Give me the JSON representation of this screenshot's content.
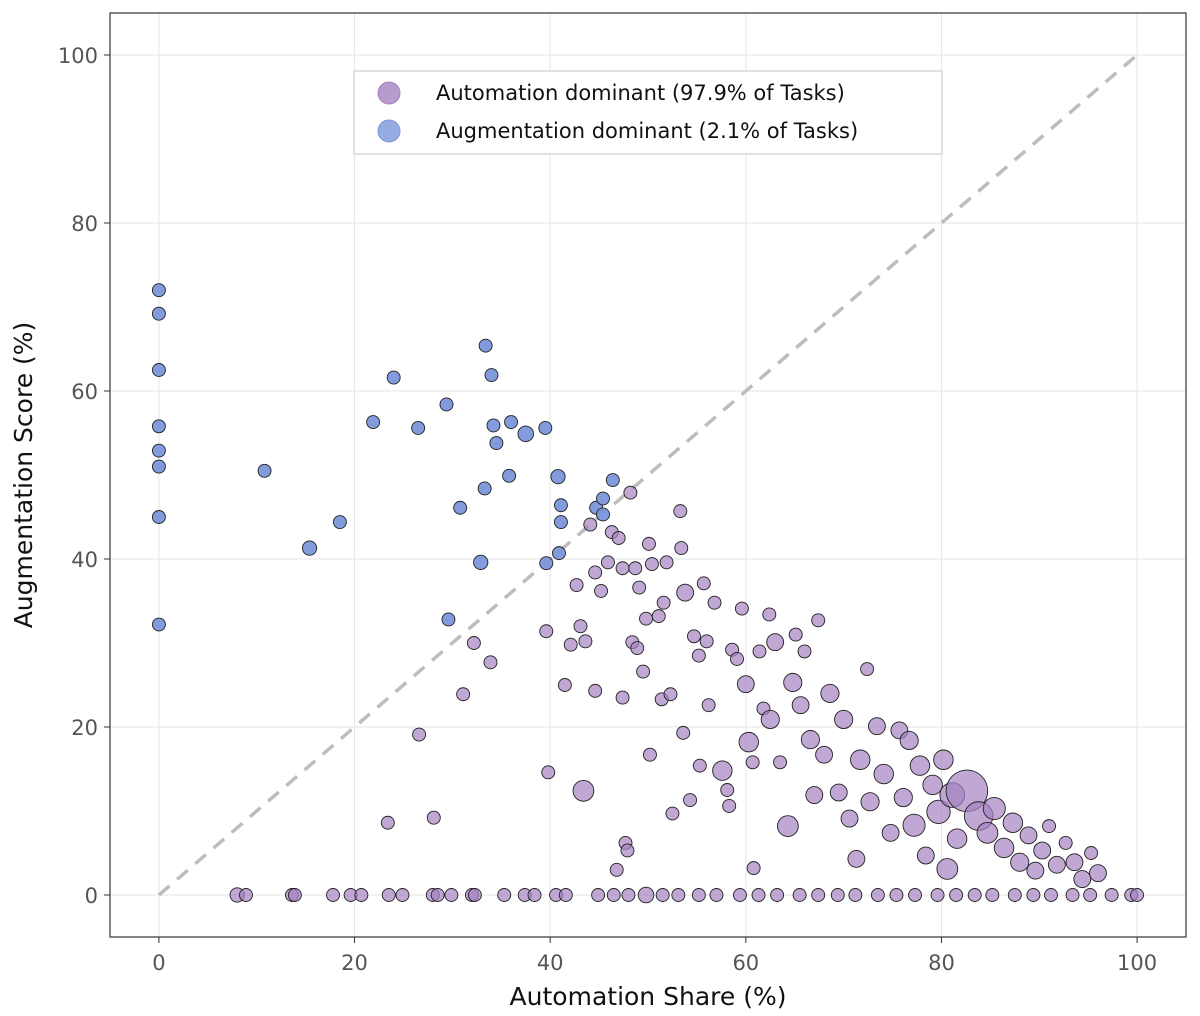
{
  "chart_data": {
    "type": "scatter",
    "xlabel": "Automation Share (%)",
    "ylabel": "Augmentation Score (%)",
    "xlim": [
      -5,
      105
    ],
    "ylim": [
      -5,
      105
    ],
    "x_ticks": [
      0,
      20,
      40,
      60,
      80,
      100
    ],
    "y_ticks": [
      0,
      20,
      40,
      60,
      80,
      100
    ],
    "x_tick_labels": [
      "0",
      "20",
      "40",
      "60",
      "80",
      "100"
    ],
    "y_tick_labels": [
      "0",
      "20",
      "40",
      "60",
      "80",
      "100"
    ],
    "grid": true,
    "reference_line": {
      "style": "dashed",
      "color": "#bdbdbd",
      "from": [
        0,
        0
      ],
      "to": [
        100,
        100
      ]
    },
    "legend": {
      "position": "top-center",
      "entries": [
        {
          "label": "Automation dominant (97.9% of Tasks)",
          "color": "#a582c2"
        },
        {
          "label": "Augmentation dominant (2.1% of Tasks)",
          "color": "#7b96da"
        }
      ]
    },
    "series": [
      {
        "name": "Augmentation dominant",
        "color": "#7b96da",
        "points": [
          [
            0,
            72,
            1
          ],
          [
            0,
            69.2,
            1
          ],
          [
            0,
            62.5,
            1
          ],
          [
            0,
            55.8,
            1
          ],
          [
            0,
            52.9,
            1
          ],
          [
            0,
            51,
            1
          ],
          [
            0,
            45,
            1
          ],
          [
            0,
            32.2,
            1
          ],
          [
            10.8,
            50.5,
            1
          ],
          [
            15.4,
            41.3,
            1.1
          ],
          [
            18.5,
            44.4,
            1
          ],
          [
            21.9,
            56.3,
            1
          ],
          [
            24,
            61.6,
            1
          ],
          [
            26.5,
            55.6,
            1
          ],
          [
            29.4,
            58.4,
            1
          ],
          [
            29.6,
            32.8,
            1
          ],
          [
            30.8,
            46.1,
            1
          ],
          [
            32.9,
            39.6,
            1.1
          ],
          [
            33.3,
            48.4,
            1
          ],
          [
            33.4,
            65.4,
            1
          ],
          [
            34,
            61.9,
            1
          ],
          [
            34.2,
            55.9,
            1
          ],
          [
            34.5,
            53.8,
            1
          ],
          [
            35.8,
            49.9,
            1
          ],
          [
            36,
            56.3,
            1
          ],
          [
            37.5,
            54.9,
            1.2
          ],
          [
            39.5,
            55.6,
            1
          ],
          [
            39.6,
            39.5,
            1
          ],
          [
            40.8,
            49.8,
            1.1
          ],
          [
            41.1,
            46.4,
            1
          ],
          [
            41.1,
            44.4,
            1
          ],
          [
            40.9,
            40.7,
            1
          ],
          [
            44.7,
            46.1,
            1
          ],
          [
            45.4,
            47.2,
            1
          ],
          [
            45.4,
            45.3,
            1
          ],
          [
            46.4,
            49.4,
            1
          ]
        ]
      },
      {
        "name": "Automation dominant",
        "color": "#a582c2",
        "points": [
          [
            8,
            0,
            1.1
          ],
          [
            8.9,
            0,
            1
          ],
          [
            13.6,
            0,
            1
          ],
          [
            13.9,
            0,
            1
          ],
          [
            17.8,
            0,
            1
          ],
          [
            19.6,
            0,
            1
          ],
          [
            20.7,
            0,
            1
          ],
          [
            23.5,
            0,
            1
          ],
          [
            24.9,
            0,
            1
          ],
          [
            28,
            0,
            1
          ],
          [
            28.5,
            0,
            1
          ],
          [
            29.9,
            0,
            1
          ],
          [
            32,
            0,
            1
          ],
          [
            32.3,
            0,
            1
          ],
          [
            35.3,
            0,
            1
          ],
          [
            37.4,
            0,
            1
          ],
          [
            38.4,
            0,
            1
          ],
          [
            40.6,
            0,
            1
          ],
          [
            41.6,
            0,
            1
          ],
          [
            44.9,
            0,
            1
          ],
          [
            46.5,
            0,
            1
          ],
          [
            48,
            0,
            1
          ],
          [
            49.8,
            0,
            1.2
          ],
          [
            51.5,
            0,
            1
          ],
          [
            53.1,
            0,
            1
          ],
          [
            55.2,
            0,
            1
          ],
          [
            57,
            0,
            1
          ],
          [
            59.4,
            0,
            1
          ],
          [
            61.3,
            0,
            1
          ],
          [
            63.2,
            0,
            1
          ],
          [
            65.5,
            0,
            1
          ],
          [
            67.4,
            0,
            1
          ],
          [
            69.4,
            0,
            1
          ],
          [
            71.2,
            0,
            1
          ],
          [
            73.5,
            0,
            1
          ],
          [
            75.4,
            0,
            1
          ],
          [
            77.3,
            0,
            1
          ],
          [
            79.6,
            0,
            1
          ],
          [
            81.5,
            0,
            1
          ],
          [
            83.4,
            0,
            1
          ],
          [
            85.2,
            0,
            1
          ],
          [
            87.5,
            0,
            1
          ],
          [
            89.4,
            0,
            1
          ],
          [
            91.2,
            0,
            1
          ],
          [
            93.4,
            0,
            1
          ],
          [
            95.2,
            0,
            1
          ],
          [
            97.4,
            0,
            1
          ],
          [
            99.4,
            0,
            1
          ],
          [
            100,
            0,
            1
          ],
          [
            23.4,
            8.6,
            1
          ],
          [
            26.6,
            19.1,
            1
          ],
          [
            28.1,
            9.2,
            1
          ],
          [
            31.1,
            23.9,
            1
          ],
          [
            32.2,
            30,
            1
          ],
          [
            33.9,
            27.7,
            1
          ],
          [
            39.6,
            31.4,
            1
          ],
          [
            39.8,
            14.6,
            1
          ],
          [
            41.5,
            25,
            1
          ],
          [
            42.1,
            29.8,
            1
          ],
          [
            42.7,
            36.9,
            1
          ],
          [
            43.1,
            32,
            1
          ],
          [
            43.4,
            12.4,
            1.6
          ],
          [
            43.6,
            30.2,
            1
          ],
          [
            44.1,
            44.1,
            1
          ],
          [
            44.6,
            38.4,
            1
          ],
          [
            44.6,
            24.3,
            1
          ],
          [
            45.2,
            36.2,
            1
          ],
          [
            45.9,
            39.6,
            1
          ],
          [
            46.3,
            43.2,
            1
          ],
          [
            46.8,
            3,
            1
          ],
          [
            47,
            42.5,
            1
          ],
          [
            47.4,
            38.9,
            1
          ],
          [
            47.4,
            23.5,
            1
          ],
          [
            47.7,
            6.2,
            1
          ],
          [
            47.9,
            5.3,
            1
          ],
          [
            48.2,
            47.9,
            1
          ],
          [
            48.4,
            30.1,
            1
          ],
          [
            48.7,
            38.9,
            1
          ],
          [
            48.9,
            29.4,
            1
          ],
          [
            49.1,
            36.6,
            1
          ],
          [
            49.5,
            26.6,
            1
          ],
          [
            49.8,
            32.9,
            1
          ],
          [
            50.1,
            41.8,
            1
          ],
          [
            50.2,
            16.7,
            1
          ],
          [
            50.4,
            39.4,
            1
          ],
          [
            51.1,
            33.2,
            1
          ],
          [
            51.4,
            23.3,
            1
          ],
          [
            51.6,
            34.8,
            1
          ],
          [
            51.9,
            39.6,
            1
          ],
          [
            52.3,
            23.9,
            1
          ],
          [
            52.5,
            9.7,
            1
          ],
          [
            53.3,
            45.7,
            1
          ],
          [
            53.4,
            41.3,
            1
          ],
          [
            53.6,
            19.3,
            1
          ],
          [
            53.8,
            36,
            1.3
          ],
          [
            54.3,
            11.3,
            1
          ],
          [
            54.7,
            30.8,
            1
          ],
          [
            55.2,
            28.5,
            1
          ],
          [
            55.3,
            15.4,
            1
          ],
          [
            55.7,
            37.1,
            1
          ],
          [
            56,
            30.2,
            1
          ],
          [
            56.2,
            22.6,
            1
          ],
          [
            56.8,
            34.8,
            1
          ],
          [
            57.6,
            14.8,
            1.5
          ],
          [
            58.1,
            12.5,
            1
          ],
          [
            58.3,
            10.6,
            1
          ],
          [
            58.6,
            29.2,
            1
          ],
          [
            59.1,
            28.1,
            1
          ],
          [
            59.6,
            34.1,
            1
          ],
          [
            60,
            25.1,
            1.3
          ],
          [
            60.3,
            18.2,
            1.5
          ],
          [
            60.7,
            15.8,
            1
          ],
          [
            60.8,
            3.2,
            1
          ],
          [
            61.4,
            29,
            1
          ],
          [
            61.8,
            22.2,
            1
          ],
          [
            62.4,
            33.4,
            1
          ],
          [
            62.5,
            20.9,
            1.4
          ],
          [
            63,
            30.1,
            1.3
          ],
          [
            63.5,
            15.8,
            1
          ],
          [
            64.3,
            8.2,
            1.6
          ],
          [
            64.8,
            25.3,
            1.4
          ],
          [
            65.1,
            31,
            1
          ],
          [
            65.6,
            22.6,
            1.3
          ],
          [
            66,
            29,
            1
          ],
          [
            66.6,
            18.5,
            1.4
          ],
          [
            67,
            11.9,
            1.3
          ],
          [
            67.4,
            32.7,
            1
          ],
          [
            68,
            16.7,
            1.3
          ],
          [
            68.6,
            24,
            1.4
          ],
          [
            69.5,
            12.2,
            1.3
          ],
          [
            70,
            20.9,
            1.4
          ],
          [
            70.6,
            9.1,
            1.3
          ],
          [
            71.3,
            4.3,
            1.3
          ],
          [
            71.7,
            16.1,
            1.5
          ],
          [
            72.4,
            26.9,
            1
          ],
          [
            72.7,
            11.1,
            1.4
          ],
          [
            73.4,
            20.1,
            1.3
          ],
          [
            74.1,
            14.4,
            1.5
          ],
          [
            74.8,
            7.4,
            1.3
          ],
          [
            75.7,
            19.6,
            1.3
          ],
          [
            76.1,
            11.6,
            1.4
          ],
          [
            76.7,
            18.4,
            1.4
          ],
          [
            77.2,
            8.3,
            1.7
          ],
          [
            77.8,
            15.4,
            1.5
          ],
          [
            78.4,
            4.7,
            1.3
          ],
          [
            79.1,
            13.1,
            1.5
          ],
          [
            79.7,
            9.9,
            1.8
          ],
          [
            80.2,
            16.1,
            1.5
          ],
          [
            80.6,
            3.1,
            1.6
          ],
          [
            81.1,
            11.9,
            1.9
          ],
          [
            81.6,
            6.7,
            1.5
          ],
          [
            82.6,
            12.4,
            3.2
          ],
          [
            83.8,
            9.4,
            2.2
          ],
          [
            84.7,
            7.4,
            1.6
          ],
          [
            85.4,
            10.3,
            1.7
          ],
          [
            86.4,
            5.6,
            1.5
          ],
          [
            87.3,
            8.6,
            1.5
          ],
          [
            88,
            3.9,
            1.4
          ],
          [
            88.9,
            7.1,
            1.3
          ],
          [
            89.6,
            2.9,
            1.3
          ],
          [
            90.3,
            5.3,
            1.3
          ],
          [
            91,
            8.2,
            1
          ],
          [
            91.8,
            3.6,
            1.3
          ],
          [
            92.7,
            6.2,
            1
          ],
          [
            93.6,
            3.9,
            1.3
          ],
          [
            94.4,
            1.9,
            1.3
          ],
          [
            95.3,
            5,
            1
          ],
          [
            96,
            2.6,
            1.3
          ]
        ]
      }
    ]
  }
}
